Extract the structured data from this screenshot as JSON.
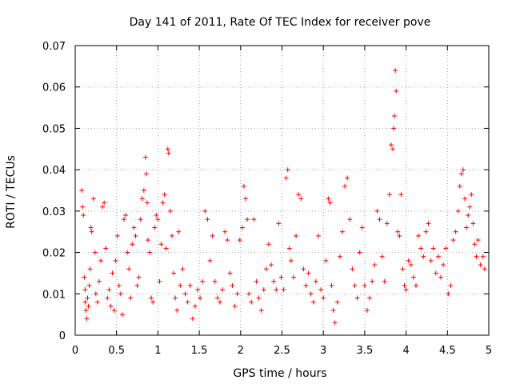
{
  "chart_data": {
    "type": "scatter",
    "title": "Day 141 of 2011, Rate Of TEC Index for receiver pove",
    "xlabel": "GPS time / hours",
    "ylabel": "ROTI / TECUs",
    "xlim": [
      0,
      5
    ],
    "ylim": [
      0,
      0.07
    ],
    "xticks": [
      0,
      0.5,
      1,
      1.5,
      2,
      2.5,
      3,
      3.5,
      4,
      4.5,
      5
    ],
    "xtick_labels": [
      "0",
      "0.5",
      "1",
      "1.5",
      "2",
      "2.5",
      "3",
      "3.5",
      "4",
      "4.5",
      "5"
    ],
    "yticks": [
      0,
      0.01,
      0.02,
      0.03,
      0.04,
      0.05,
      0.06,
      0.07
    ],
    "ytick_labels": [
      "0",
      "0.01",
      "0.02",
      "0.03",
      "0.04",
      "0.05",
      "0.06",
      "0.07"
    ],
    "grid": true,
    "marker": "+",
    "series": [
      {
        "name": "ROTI",
        "color": "#ff0000",
        "points": [
          [
            0.08,
            0.035
          ],
          [
            0.09,
            0.031
          ],
          [
            0.1,
            0.029
          ],
          [
            0.11,
            0.014
          ],
          [
            0.12,
            0.011
          ],
          [
            0.12,
            0.008
          ],
          [
            0.13,
            0.006
          ],
          [
            0.14,
            0.004
          ],
          [
            0.15,
            0.009
          ],
          [
            0.16,
            0.007
          ],
          [
            0.17,
            0.012
          ],
          [
            0.18,
            0.016
          ],
          [
            0.19,
            0.026
          ],
          [
            0.2,
            0.025
          ],
          [
            0.22,
            0.033
          ],
          [
            0.24,
            0.02
          ],
          [
            0.25,
            0.01
          ],
          [
            0.27,
            0.008
          ],
          [
            0.29,
            0.013
          ],
          [
            0.31,
            0.018
          ],
          [
            0.33,
            0.031
          ],
          [
            0.35,
            0.032
          ],
          [
            0.37,
            0.021
          ],
          [
            0.39,
            0.009
          ],
          [
            0.41,
            0.011
          ],
          [
            0.43,
            0.007
          ],
          [
            0.45,
            0.015
          ],
          [
            0.47,
            0.006
          ],
          [
            0.49,
            0.018
          ],
          [
            0.51,
            0.024
          ],
          [
            0.53,
            0.012
          ],
          [
            0.55,
            0.01
          ],
          [
            0.57,
            0.005
          ],
          [
            0.59,
            0.028
          ],
          [
            0.61,
            0.029
          ],
          [
            0.63,
            0.02
          ],
          [
            0.65,
            0.016
          ],
          [
            0.67,
            0.009
          ],
          [
            0.69,
            0.022
          ],
          [
            0.71,
            0.026
          ],
          [
            0.73,
            0.024
          ],
          [
            0.75,
            0.012
          ],
          [
            0.77,
            0.014
          ],
          [
            0.79,
            0.028
          ],
          [
            0.81,
            0.033
          ],
          [
            0.83,
            0.035
          ],
          [
            0.85,
            0.043
          ],
          [
            0.86,
            0.039
          ],
          [
            0.87,
            0.032
          ],
          [
            0.88,
            0.023
          ],
          [
            0.9,
            0.02
          ],
          [
            0.92,
            0.009
          ],
          [
            0.94,
            0.008
          ],
          [
            0.96,
            0.026
          ],
          [
            0.98,
            0.029
          ],
          [
            1,
            0.028
          ],
          [
            1.02,
            0.013
          ],
          [
            1.04,
            0.022
          ],
          [
            1.06,
            0.032
          ],
          [
            1.08,
            0.034
          ],
          [
            1.1,
            0.021
          ],
          [
            1.12,
            0.045
          ],
          [
            1.13,
            0.044
          ],
          [
            1.15,
            0.03
          ],
          [
            1.17,
            0.024
          ],
          [
            1.19,
            0.015
          ],
          [
            1.21,
            0.009
          ],
          [
            1.23,
            0.006
          ],
          [
            1.25,
            0.025
          ],
          [
            1.27,
            0.012
          ],
          [
            1.3,
            0.016
          ],
          [
            1.33,
            0.01
          ],
          [
            1.36,
            0.008
          ],
          [
            1.39,
            0.012
          ],
          [
            1.42,
            0.004
          ],
          [
            1.45,
            0.007
          ],
          [
            1.48,
            0.011
          ],
          [
            1.51,
            0.009
          ],
          [
            1.54,
            0.013
          ],
          [
            1.57,
            0.03
          ],
          [
            1.6,
            0.028
          ],
          [
            1.63,
            0.018
          ],
          [
            1.66,
            0.024
          ],
          [
            1.69,
            0.013
          ],
          [
            1.72,
            0.009
          ],
          [
            1.75,
            0.008
          ],
          [
            1.78,
            0.011
          ],
          [
            1.81,
            0.025
          ],
          [
            1.84,
            0.023
          ],
          [
            1.87,
            0.015
          ],
          [
            1.9,
            0.012
          ],
          [
            1.93,
            0.007
          ],
          [
            1.96,
            0.01
          ],
          [
            1.99,
            0.023
          ],
          [
            2.02,
            0.026
          ],
          [
            2.04,
            0.036
          ],
          [
            2.06,
            0.033
          ],
          [
            2.08,
            0.028
          ],
          [
            2.1,
            0.01
          ],
          [
            2.13,
            0.008
          ],
          [
            2.16,
            0.028
          ],
          [
            2.19,
            0.013
          ],
          [
            2.22,
            0.009
          ],
          [
            2.25,
            0.006
          ],
          [
            2.28,
            0.011
          ],
          [
            2.31,
            0.016
          ],
          [
            2.34,
            0.022
          ],
          [
            2.37,
            0.017
          ],
          [
            2.4,
            0.013
          ],
          [
            2.43,
            0.011
          ],
          [
            2.46,
            0.027
          ],
          [
            2.49,
            0.014
          ],
          [
            2.52,
            0.011
          ],
          [
            2.55,
            0.038
          ],
          [
            2.57,
            0.04
          ],
          [
            2.59,
            0.021
          ],
          [
            2.61,
            0.018
          ],
          [
            2.64,
            0.014
          ],
          [
            2.67,
            0.024
          ],
          [
            2.7,
            0.034
          ],
          [
            2.73,
            0.033
          ],
          [
            2.76,
            0.016
          ],
          [
            2.79,
            0.012
          ],
          [
            2.82,
            0.015
          ],
          [
            2.85,
            0.01
          ],
          [
            2.88,
            0.008
          ],
          [
            2.91,
            0.013
          ],
          [
            2.94,
            0.024
          ],
          [
            2.97,
            0.011
          ],
          [
            3,
            0.009
          ],
          [
            3.03,
            0.018
          ],
          [
            3.06,
            0.033
          ],
          [
            3.08,
            0.032
          ],
          [
            3.1,
            0.012
          ],
          [
            3.12,
            0.006
          ],
          [
            3.14,
            0.003
          ],
          [
            3.17,
            0.008
          ],
          [
            3.2,
            0.019
          ],
          [
            3.23,
            0.025
          ],
          [
            3.26,
            0.036
          ],
          [
            3.29,
            0.038
          ],
          [
            3.32,
            0.028
          ],
          [
            3.35,
            0.016
          ],
          [
            3.38,
            0.012
          ],
          [
            3.41,
            0.009
          ],
          [
            3.44,
            0.02
          ],
          [
            3.47,
            0.026
          ],
          [
            3.5,
            0.012
          ],
          [
            3.53,
            0.006
          ],
          [
            3.56,
            0.009
          ],
          [
            3.59,
            0.013
          ],
          [
            3.62,
            0.017
          ],
          [
            3.65,
            0.03
          ],
          [
            3.68,
            0.028
          ],
          [
            3.71,
            0.019
          ],
          [
            3.74,
            0.013
          ],
          [
            3.77,
            0.027
          ],
          [
            3.8,
            0.034
          ],
          [
            3.82,
            0.046
          ],
          [
            3.84,
            0.045
          ],
          [
            3.85,
            0.05
          ],
          [
            3.86,
            0.053
          ],
          [
            3.87,
            0.064
          ],
          [
            3.88,
            0.059
          ],
          [
            3.9,
            0.025
          ],
          [
            3.92,
            0.024
          ],
          [
            3.94,
            0.034
          ],
          [
            3.96,
            0.016
          ],
          [
            3.98,
            0.012
          ],
          [
            4,
            0.011
          ],
          [
            4.03,
            0.018
          ],
          [
            4.06,
            0.017
          ],
          [
            4.09,
            0.014
          ],
          [
            4.12,
            0.012
          ],
          [
            4.15,
            0.024
          ],
          [
            4.18,
            0.021
          ],
          [
            4.21,
            0.019
          ],
          [
            4.24,
            0.025
          ],
          [
            4.27,
            0.027
          ],
          [
            4.3,
            0.018
          ],
          [
            4.33,
            0.021
          ],
          [
            4.36,
            0.015
          ],
          [
            4.39,
            0.019
          ],
          [
            4.42,
            0.014
          ],
          [
            4.45,
            0.017
          ],
          [
            4.48,
            0.021
          ],
          [
            4.51,
            0.01
          ],
          [
            4.54,
            0.012
          ],
          [
            4.57,
            0.023
          ],
          [
            4.6,
            0.025
          ],
          [
            4.63,
            0.03
          ],
          [
            4.65,
            0.036
          ],
          [
            4.67,
            0.039
          ],
          [
            4.69,
            0.04
          ],
          [
            4.71,
            0.033
          ],
          [
            4.73,
            0.026
          ],
          [
            4.75,
            0.029
          ],
          [
            4.77,
            0.031
          ],
          [
            4.79,
            0.034
          ],
          [
            4.81,
            0.027
          ],
          [
            4.83,
            0.022
          ],
          [
            4.85,
            0.019
          ],
          [
            4.87,
            0.023
          ],
          [
            4.9,
            0.017
          ],
          [
            4.93,
            0.019
          ],
          [
            4.95,
            0.016
          ]
        ]
      }
    ]
  }
}
